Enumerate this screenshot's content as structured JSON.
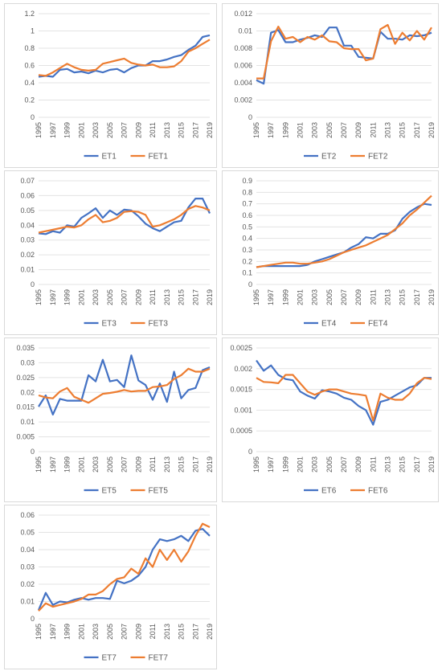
{
  "colors": {
    "et": "#4472C4",
    "fet": "#ED7D31",
    "grid": "#e3e3e3",
    "tick": "#595959",
    "border": "#d9d9d9"
  },
  "x_tick_labels": [
    "1995",
    "1997",
    "1999",
    "2001",
    "2003",
    "2005",
    "2007",
    "2009",
    "2011",
    "2013",
    "2015",
    "2017",
    "2019"
  ],
  "chart_data": [
    {
      "type": "line",
      "x": [
        1995,
        1996,
        1997,
        1998,
        1999,
        2000,
        2001,
        2002,
        2003,
        2004,
        2005,
        2006,
        2007,
        2008,
        2009,
        2010,
        2011,
        2012,
        2013,
        2014,
        2015,
        2016,
        2017,
        2018,
        2019
      ],
      "ylim": [
        0,
        1.2
      ],
      "yticks": [
        "0",
        "0.2",
        "0.4",
        "0.6",
        "0.8",
        "1",
        "1.2"
      ],
      "series": [
        {
          "name": "ET1",
          "values": [
            0.47,
            0.48,
            0.47,
            0.55,
            0.56,
            0.52,
            0.53,
            0.51,
            0.54,
            0.52,
            0.55,
            0.56,
            0.52,
            0.57,
            0.6,
            0.6,
            0.65,
            0.65,
            0.67,
            0.7,
            0.72,
            0.78,
            0.83,
            0.93,
            0.95
          ]
        },
        {
          "name": "FET1",
          "values": [
            0.49,
            0.48,
            0.52,
            0.57,
            0.62,
            0.58,
            0.55,
            0.54,
            0.55,
            0.62,
            0.64,
            0.66,
            0.68,
            0.63,
            0.61,
            0.6,
            0.61,
            0.58,
            0.58,
            0.59,
            0.65,
            0.76,
            0.8,
            0.85,
            0.9
          ]
        }
      ],
      "legend": "bottom"
    },
    {
      "type": "line",
      "x": [
        1995,
        1996,
        1997,
        1998,
        1999,
        2000,
        2001,
        2002,
        2003,
        2004,
        2005,
        2006,
        2007,
        2008,
        2009,
        2010,
        2011,
        2012,
        2013,
        2014,
        2015,
        2016,
        2017,
        2018,
        2019
      ],
      "ylim": [
        0,
        0.012
      ],
      "yticks": [
        "0",
        "0.002",
        "0.004",
        "0.006",
        "0.008",
        "0.01",
        "0.012"
      ],
      "series": [
        {
          "name": "ET2",
          "values": [
            0.0043,
            0.0039,
            0.0098,
            0.0101,
            0.0087,
            0.0087,
            0.009,
            0.0092,
            0.0095,
            0.0093,
            0.0104,
            0.0104,
            0.0083,
            0.0083,
            0.007,
            0.0069,
            0.0068,
            0.0099,
            0.0091,
            0.0091,
            0.009,
            0.0095,
            0.0094,
            0.0095,
            0.0098
          ]
        },
        {
          "name": "FET2",
          "values": [
            0.0045,
            0.0045,
            0.0088,
            0.0105,
            0.0091,
            0.0093,
            0.0087,
            0.0093,
            0.009,
            0.0095,
            0.0088,
            0.0087,
            0.008,
            0.0079,
            0.0079,
            0.0066,
            0.0068,
            0.0102,
            0.0107,
            0.0085,
            0.0098,
            0.0089,
            0.01,
            0.009,
            0.0104
          ]
        }
      ],
      "legend": "bottom"
    },
    {
      "type": "line",
      "x": [
        1995,
        1996,
        1997,
        1998,
        1999,
        2000,
        2001,
        2002,
        2003,
        2004,
        2005,
        2006,
        2007,
        2008,
        2009,
        2010,
        2011,
        2012,
        2013,
        2014,
        2015,
        2016,
        2017,
        2018,
        2019
      ],
      "ylim": [
        0,
        0.07
      ],
      "yticks": [
        "0",
        "0.01",
        "0.02",
        "0.03",
        "0.04",
        "0.05",
        "0.06",
        "0.07"
      ],
      "series": [
        {
          "name": "ET3",
          "values": [
            0.0345,
            0.034,
            0.036,
            0.035,
            0.04,
            0.039,
            0.045,
            0.048,
            0.0515,
            0.045,
            0.05,
            0.047,
            0.0505,
            0.05,
            0.046,
            0.041,
            0.038,
            0.036,
            0.039,
            0.042,
            0.043,
            0.052,
            0.058,
            0.058,
            0.048
          ]
        },
        {
          "name": "FET3",
          "values": [
            0.035,
            0.036,
            0.037,
            0.038,
            0.039,
            0.0385,
            0.04,
            0.044,
            0.047,
            0.042,
            0.043,
            0.045,
            0.049,
            0.0495,
            0.049,
            0.047,
            0.039,
            0.04,
            0.042,
            0.044,
            0.047,
            0.051,
            0.053,
            0.052,
            0.05
          ]
        }
      ],
      "legend": "bottom"
    },
    {
      "type": "line",
      "x": [
        1995,
        1996,
        1997,
        1998,
        1999,
        2000,
        2001,
        2002,
        2003,
        2004,
        2005,
        2006,
        2007,
        2008,
        2009,
        2010,
        2011,
        2012,
        2013,
        2014,
        2015,
        2016,
        2017,
        2018,
        2019
      ],
      "ylim": [
        0,
        0.9
      ],
      "yticks": [
        "0",
        "0.1",
        "0.2",
        "0.3",
        "0.4",
        "0.5",
        "0.6",
        "0.7",
        "0.8",
        "0.9"
      ],
      "series": [
        {
          "name": "ET4",
          "values": [
            0.15,
            0.16,
            0.16,
            0.16,
            0.16,
            0.16,
            0.16,
            0.17,
            0.2,
            0.22,
            0.24,
            0.26,
            0.28,
            0.32,
            0.35,
            0.41,
            0.4,
            0.44,
            0.44,
            0.47,
            0.57,
            0.63,
            0.67,
            0.7,
            0.69
          ]
        },
        {
          "name": "FET4",
          "values": [
            0.15,
            0.16,
            0.17,
            0.18,
            0.19,
            0.19,
            0.18,
            0.18,
            0.19,
            0.2,
            0.22,
            0.25,
            0.28,
            0.3,
            0.32,
            0.34,
            0.37,
            0.4,
            0.43,
            0.48,
            0.53,
            0.6,
            0.65,
            0.71,
            0.77
          ]
        }
      ],
      "legend": "bottom"
    },
    {
      "type": "line",
      "x": [
        1995,
        1996,
        1997,
        1998,
        1999,
        2000,
        2001,
        2002,
        2003,
        2004,
        2005,
        2006,
        2007,
        2008,
        2009,
        2010,
        2011,
        2012,
        2013,
        2014,
        2015,
        2016,
        2017,
        2018,
        2019
      ],
      "ylim": [
        0,
        0.035
      ],
      "yticks": [
        "0",
        "0.005",
        "0.01",
        "0.015",
        "0.02",
        "0.025",
        "0.03",
        "0.035"
      ],
      "series": [
        {
          "name": "ET5",
          "values": [
            0.0152,
            0.019,
            0.0125,
            0.0178,
            0.0172,
            0.0172,
            0.0172,
            0.0258,
            0.0237,
            0.031,
            0.0237,
            0.0242,
            0.0218,
            0.0325,
            0.024,
            0.0225,
            0.0175,
            0.023,
            0.0168,
            0.027,
            0.018,
            0.0208,
            0.0215,
            0.0275,
            0.0285
          ]
        },
        {
          "name": "FET5",
          "values": [
            0.019,
            0.0183,
            0.018,
            0.0203,
            0.0215,
            0.0185,
            0.0175,
            0.0165,
            0.018,
            0.0195,
            0.0198,
            0.0202,
            0.0208,
            0.0203,
            0.0205,
            0.0205,
            0.0218,
            0.022,
            0.0225,
            0.0245,
            0.0258,
            0.028,
            0.027,
            0.027,
            0.028
          ]
        }
      ],
      "legend": "bottom"
    },
    {
      "type": "line",
      "x": [
        1995,
        1996,
        1997,
        1998,
        1999,
        2000,
        2001,
        2002,
        2003,
        2004,
        2005,
        2006,
        2007,
        2008,
        2009,
        2010,
        2011,
        2012,
        2013,
        2014,
        2015,
        2016,
        2017,
        2018,
        2019
      ],
      "ylim": [
        0,
        0.0025
      ],
      "yticks": [
        "0",
        "0.0005",
        "0.001",
        "0.0015",
        "0.002",
        "0.0025"
      ],
      "series": [
        {
          "name": "ET6",
          "values": [
            0.0022,
            0.00195,
            0.00208,
            0.00185,
            0.00175,
            0.00172,
            0.00145,
            0.00135,
            0.00128,
            0.00148,
            0.00145,
            0.0014,
            0.0013,
            0.00125,
            0.0011,
            0.001,
            0.00065,
            0.0012,
            0.00125,
            0.00135,
            0.00145,
            0.00155,
            0.0016,
            0.00178,
            0.00178
          ]
        },
        {
          "name": "FET6",
          "values": [
            0.00178,
            0.00168,
            0.00167,
            0.00165,
            0.00185,
            0.00185,
            0.00165,
            0.00145,
            0.00137,
            0.00145,
            0.0015,
            0.0015,
            0.00145,
            0.0014,
            0.00138,
            0.00135,
            0.00075,
            0.0014,
            0.0013,
            0.00125,
            0.00125,
            0.0014,
            0.00165,
            0.00178,
            0.00175
          ]
        }
      ],
      "legend": "bottom"
    },
    {
      "type": "line",
      "x": [
        1995,
        1996,
        1997,
        1998,
        1999,
        2000,
        2001,
        2002,
        2003,
        2004,
        2005,
        2006,
        2007,
        2008,
        2009,
        2010,
        2011,
        2012,
        2013,
        2014,
        2015,
        2016,
        2017,
        2018,
        2019
      ],
      "ylim": [
        0,
        0.06
      ],
      "yticks": [
        "0",
        "0.01",
        "0.02",
        "0.03",
        "0.04",
        "0.05",
        "0.06"
      ],
      "series": [
        {
          "name": "ET7",
          "values": [
            0.005,
            0.015,
            0.008,
            0.01,
            0.0095,
            0.011,
            0.012,
            0.011,
            0.012,
            0.012,
            0.0115,
            0.022,
            0.0205,
            0.022,
            0.025,
            0.03,
            0.04,
            0.046,
            0.045,
            0.046,
            0.048,
            0.045,
            0.051,
            0.052,
            0.048
          ]
        },
        {
          "name": "FET7",
          "values": [
            0.0045,
            0.009,
            0.007,
            0.008,
            0.009,
            0.01,
            0.0115,
            0.014,
            0.014,
            0.016,
            0.02,
            0.023,
            0.024,
            0.029,
            0.026,
            0.035,
            0.03,
            0.04,
            0.034,
            0.04,
            0.033,
            0.039,
            0.048,
            0.055,
            0.053
          ]
        }
      ],
      "legend": "bottom"
    }
  ]
}
